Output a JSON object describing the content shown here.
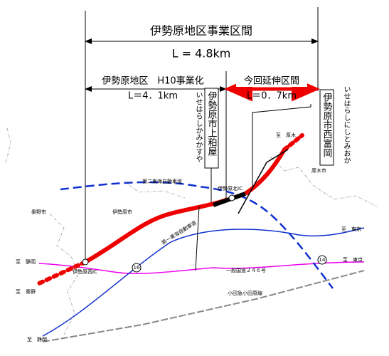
{
  "header": {
    "title": "伊勢原地区事業区間",
    "length": "L = 4.8km"
  },
  "sections": [
    {
      "name": "伊勢原地区　H10事業化",
      "length": "L＝4．1km"
    },
    {
      "name": "今回延伸区間",
      "length": "L＝0．7km"
    }
  ],
  "places": [
    {
      "name": "伊勢原市上粕屋",
      "reading": "いせはらしかみかすや"
    },
    {
      "name": "伊勢原市西富岡",
      "reading": "いせはらしにしとみおか"
    }
  ],
  "map_labels": [
    "至　厚木",
    "厚木市",
    "第二東海自動車道",
    "伊勢原北IC",
    "秦野市",
    "伊勢原市",
    "第一東海自動車道",
    "一般国道２４６号",
    "小田急小田原線",
    "至　静岡",
    "至　秦野",
    "伊勢原西IC",
    "至　静岡",
    "至　東京",
    "至　東京",
    "16",
    "14"
  ]
}
